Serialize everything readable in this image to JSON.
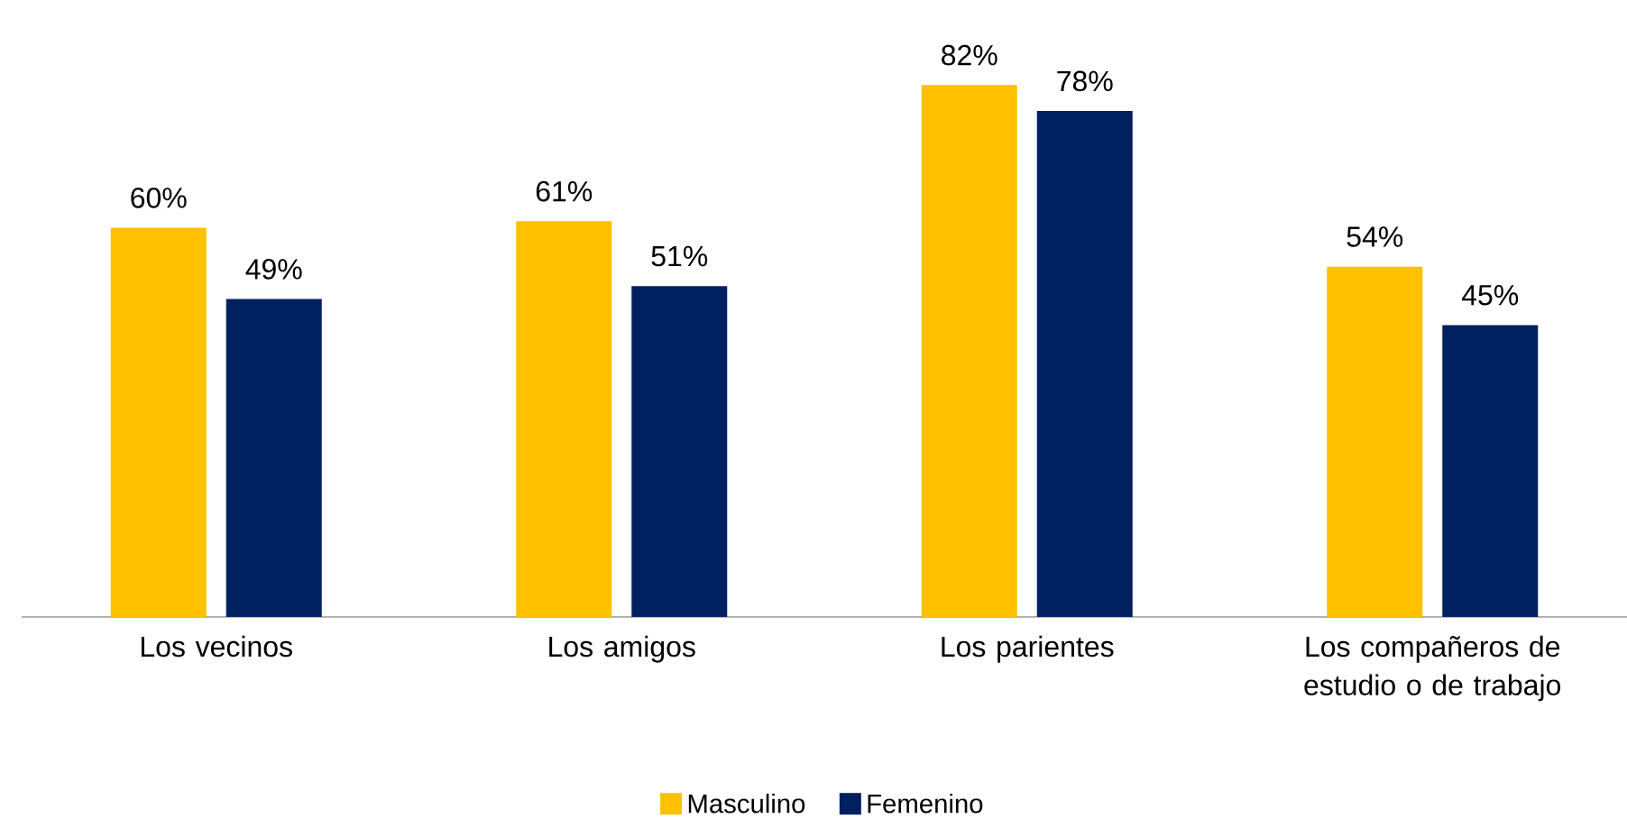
{
  "chart_data": {
    "type": "bar",
    "categories": [
      "Los vecinos",
      "Los amigos",
      "Los parientes",
      "Los compañeros de estudio o de trabajo"
    ],
    "series": [
      {
        "name": "Masculino",
        "color": "#ffc000",
        "values": [
          60,
          61,
          82,
          54
        ],
        "value_labels": [
          "60%",
          "61%",
          "82%",
          "54%"
        ]
      },
      {
        "name": "Femenino",
        "color": "#002060",
        "values": [
          49,
          51,
          78,
          45
        ],
        "value_labels": [
          "49%",
          "51%",
          "78%",
          "45%"
        ]
      }
    ],
    "legend": "bottom"
  }
}
